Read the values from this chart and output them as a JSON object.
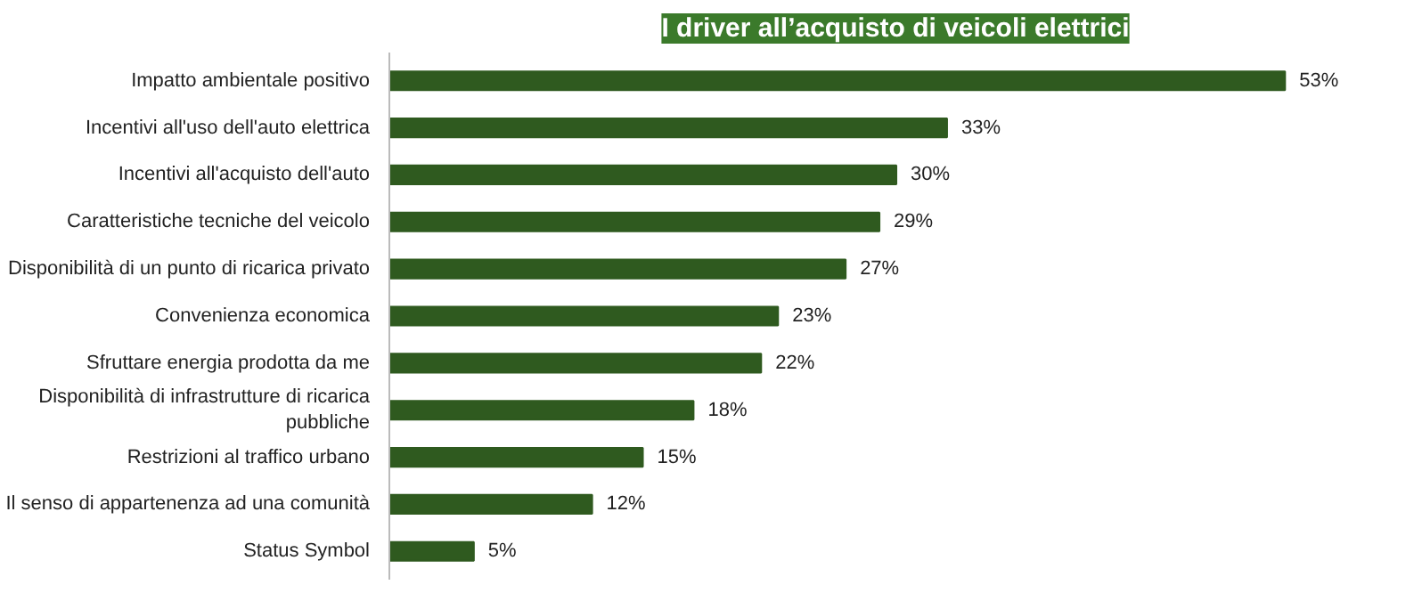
{
  "chart_data": {
    "type": "bar",
    "orientation": "horizontal",
    "title": "I driver all’acquisto di veicoli elettrici",
    "categories": [
      "Impatto ambientale positivo",
      "Incentivi all'uso dell'auto elettrica",
      "Incentivi all'acquisto dell'auto",
      "Caratteristiche tecniche del veicolo",
      "Disponibilità di un punto di ricarica privato",
      "Convenienza economica",
      "Sfruttare energia prodotta da me",
      "Disponibilità di infrastrutture di ricarica pubbliche",
      "Restrizioni al traffico urbano",
      "Il senso di appartenenza ad una comunità",
      "Status Symbol"
    ],
    "values": [
      53,
      33,
      30,
      29,
      27,
      23,
      22,
      18,
      15,
      12,
      5
    ],
    "value_labels": [
      "53%",
      "33%",
      "30%",
      "29%",
      "27%",
      "23%",
      "22%",
      "18%",
      "15%",
      "12%",
      "5%"
    ],
    "color": "#2f5a1f",
    "grid": false
  }
}
